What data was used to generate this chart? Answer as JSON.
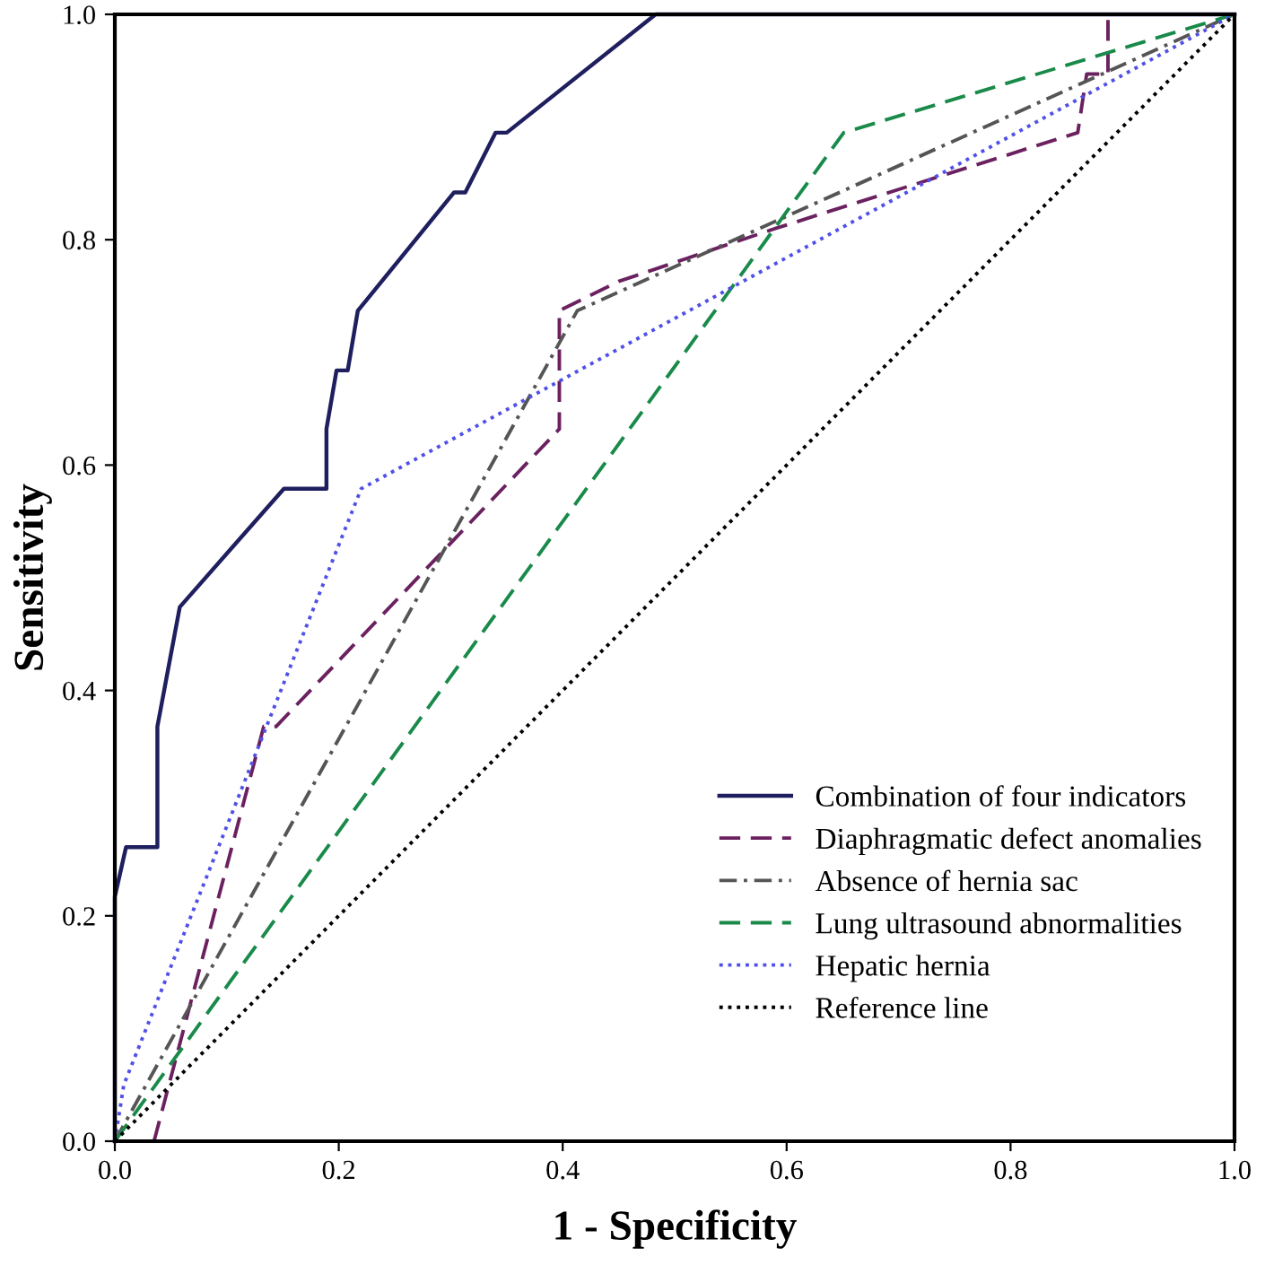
{
  "chart_data": {
    "type": "line",
    "xlabel": "1 - Specificity",
    "ylabel": "Sensitivity",
    "xlim": [
      0,
      1
    ],
    "ylim": [
      0,
      1
    ],
    "xticks": [
      {
        "value": 0,
        "label": "0.0"
      },
      {
        "value": 0.2,
        "label": "0.2"
      },
      {
        "value": 0.4,
        "label": "0.4"
      },
      {
        "value": 0.6,
        "label": "0.6"
      },
      {
        "value": 0.8,
        "label": "0.8"
      },
      {
        "value": 1,
        "label": "1.0"
      }
    ],
    "yticks": [
      {
        "value": 0,
        "label": "0.0"
      },
      {
        "value": 0.2,
        "label": "0.2"
      },
      {
        "value": 0.4,
        "label": "0.4"
      },
      {
        "value": 0.6,
        "label": "0.6"
      },
      {
        "value": 0.8,
        "label": "0.8"
      },
      {
        "value": 1,
        "label": "1.0"
      }
    ],
    "grid": false,
    "legend": "bottom right",
    "marker": "none",
    "series": [
      {
        "name": "Combination of four indicators",
        "color": "#1f1f5f",
        "line_style": "solid",
        "x": [
          0,
          0,
          0.01,
          0.038,
          0.038,
          0.058,
          0.151,
          0.189,
          0.189,
          0.198,
          0.208,
          0.217,
          0.303,
          0.313,
          0.34,
          0.35,
          0.483,
          1
        ],
        "values": [
          0,
          0.217,
          0.261,
          0.261,
          0.368,
          0.474,
          0.579,
          0.579,
          0.632,
          0.684,
          0.684,
          0.737,
          0.842,
          0.842,
          0.895,
          0.895,
          1,
          1
        ]
      },
      {
        "name": "Diaphragmatic defect anomalies",
        "color": "#6b2160",
        "line_style": "dashed",
        "x": [
          0.035,
          0.133,
          0.144,
          0.397,
          0.397,
          0.45,
          0.59,
          0.86,
          0.868,
          0.887,
          0.887,
          1
        ],
        "values": [
          0,
          0.368,
          0.368,
          0.632,
          0.737,
          0.763,
          0.81,
          0.895,
          0.947,
          0.947,
          1,
          1
        ]
      },
      {
        "name": "Absence of hernia sac",
        "color": "#555555",
        "line_style": "dashdot",
        "x": [
          0,
          0.413,
          1
        ],
        "values": [
          0,
          0.737,
          1
        ]
      },
      {
        "name": "Lung ultrasound abnormalities",
        "color": "#1a8a4a",
        "line_style": "dashed",
        "x": [
          0,
          0.651,
          1
        ],
        "values": [
          0,
          0.895,
          1
        ]
      },
      {
        "name": "Hepatic hernia",
        "color": "#5050e8",
        "line_style": "dotted",
        "x": [
          0,
          0.008,
          0.22,
          1
        ],
        "values": [
          0,
          0.05,
          0.579,
          1
        ]
      },
      {
        "name": "Reference line",
        "color": "#000000",
        "line_style": "dotted",
        "x": [
          0,
          1
        ],
        "values": [
          0,
          1
        ]
      }
    ]
  }
}
